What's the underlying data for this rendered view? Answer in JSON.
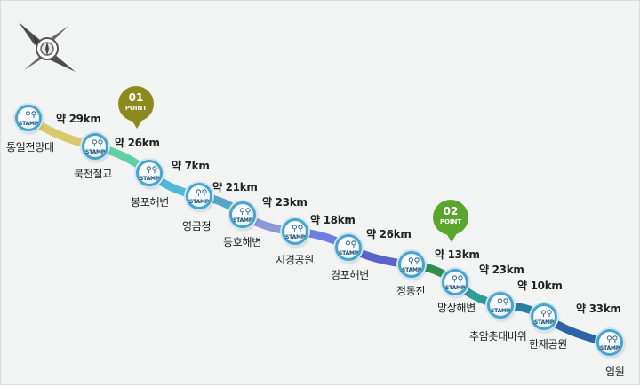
{
  "map": {
    "colors": {
      "background": "#f2f3f3",
      "stamp_ring": "#4aa3c8",
      "point1": "#8c8a1c",
      "point2": "#5aa52c",
      "segments": [
        "#d8c96a",
        "#5fd0a6",
        "#4fb9d9",
        "#54a8c6",
        "#8a9ad6",
        "#6c7ee0",
        "#5a63c8",
        "#2f8f4a",
        "#2e9c9a",
        "#2b7f9e",
        "#2a63a6",
        "#6a3ea4"
      ]
    },
    "stamp_label": "STAMP",
    "stations": [
      {
        "name": "통일전망대",
        "icon": "bicycle-icon"
      },
      {
        "name": "북천철교",
        "icon": "bicycle-icon"
      },
      {
        "name": "봉포해변",
        "icon": "bicycle-icon"
      },
      {
        "name": "영금정",
        "icon": "bicycle-icon"
      },
      {
        "name": "동호해변",
        "icon": "bicycle-icon"
      },
      {
        "name": "지경공원",
        "icon": "bicycle-icon"
      },
      {
        "name": "경포해변",
        "icon": "bicycle-icon"
      },
      {
        "name": "정동진",
        "icon": "bicycle-icon"
      },
      {
        "name": "망상해변",
        "icon": "bicycle-icon"
      },
      {
        "name": "추암촛대바위",
        "icon": "bicycle-icon"
      },
      {
        "name": "한재공원",
        "icon": "bicycle-icon"
      },
      {
        "name": "임원",
        "icon": "bicycle-icon"
      }
    ],
    "distances": [
      "약 29km",
      "약 26km",
      "약 7km",
      "약 21km",
      "약 23km",
      "약 18km",
      "약 26km",
      "약 13km",
      "약 23km",
      "약 10km",
      "약 33km"
    ],
    "points": [
      {
        "number": "01",
        "text": "POINT"
      },
      {
        "number": "02",
        "text": "POINT"
      }
    ],
    "compass_icon": "compass-rose-icon"
  }
}
